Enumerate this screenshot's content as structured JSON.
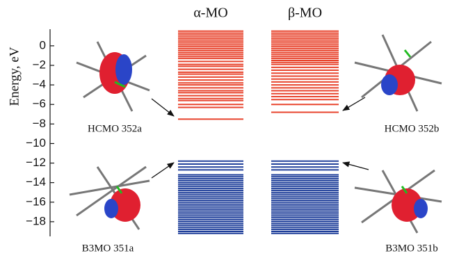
{
  "chart_data": {
    "type": "levels",
    "y_label": "Energy, eV",
    "ylim": [
      -19.5,
      1.7
    ],
    "yticks": [
      0,
      {
        "value": -2,
        "label": "−2"
      },
      {
        "value": -4,
        "label": "−4"
      },
      {
        "value": -6,
        "label": "−6"
      },
      {
        "value": -8,
        "label": "−8"
      },
      {
        "value": -10,
        "label": "−10"
      },
      {
        "value": -12,
        "label": "−12"
      },
      {
        "value": -14,
        "label": "−14"
      },
      {
        "value": -16,
        "label": "−16"
      },
      {
        "value": -18,
        "label": "−18"
      }
    ],
    "virtual_color": "#e8432c",
    "occupied_color": "#1f3f9a",
    "columns": [
      {
        "name": "α-MO",
        "virtual": [
          1.5,
          1.3,
          1.1,
          0.9,
          0.7,
          0.5,
          0.3,
          0.1,
          -0.1,
          -0.3,
          -0.5,
          -0.7,
          -0.9,
          -1.1,
          -1.3,
          -1.6,
          -1.9,
          -2.1,
          -2.4,
          -2.7,
          -2.9,
          -3.2,
          -3.5,
          -3.8,
          -4.0,
          -4.3,
          -4.6,
          -4.8,
          -5.1,
          -5.4,
          -5.6,
          -6.0,
          -6.3,
          -7.5
        ],
        "occupied": [
          -11.8,
          -12.1,
          -12.4,
          -12.7,
          -13.2,
          -13.4,
          -13.6,
          -13.8,
          -14.0,
          -14.2,
          -14.4,
          -14.6,
          -14.8,
          -15.0,
          -15.2,
          -15.4,
          -15.6,
          -15.8,
          -16.0,
          -16.2,
          -16.4,
          -16.6,
          -16.8,
          -17.0,
          -17.2,
          -17.4,
          -17.6,
          -17.8,
          -18.0,
          -18.2,
          -18.4,
          -18.6,
          -18.8,
          -19.0,
          -19.2
        ]
      },
      {
        "name": "β-MO",
        "virtual": [
          1.5,
          1.3,
          1.1,
          0.9,
          0.7,
          0.5,
          0.3,
          0.1,
          -0.1,
          -0.3,
          -0.5,
          -0.7,
          -0.9,
          -1.1,
          -1.3,
          -1.5,
          -1.7,
          -1.9,
          -2.2,
          -2.5,
          -2.8,
          -3.1,
          -3.4,
          -3.7,
          -4.0,
          -4.3,
          -4.6,
          -4.9,
          -5.2,
          -5.5,
          -6.0,
          -6.8
        ],
        "occupied": [
          -11.8,
          -12.1,
          -12.4,
          -12.7,
          -13.2,
          -13.4,
          -13.6,
          -13.8,
          -14.0,
          -14.2,
          -14.4,
          -14.6,
          -14.8,
          -15.0,
          -15.2,
          -15.4,
          -15.6,
          -15.8,
          -16.0,
          -16.2,
          -16.4,
          -16.6,
          -16.8,
          -17.0,
          -17.2,
          -17.4,
          -17.6,
          -17.8,
          -18.0,
          -18.2,
          -18.4,
          -18.6,
          -18.8,
          -19.0,
          -19.2
        ]
      }
    ],
    "annotations": [
      "HCMO 352a",
      "HCMO 352b",
      "B3MO 351a",
      "B3MO 351b"
    ]
  }
}
